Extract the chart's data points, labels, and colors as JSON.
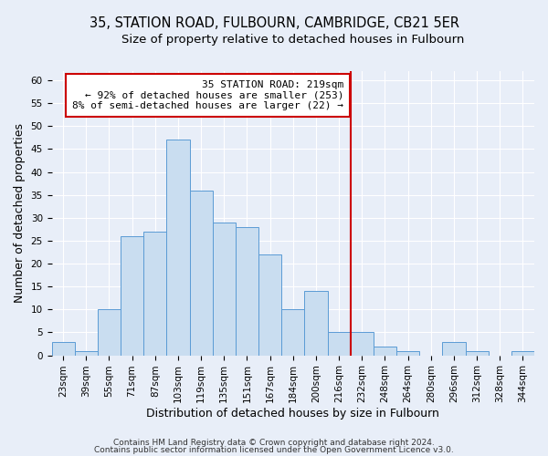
{
  "title1": "35, STATION ROAD, FULBOURN, CAMBRIDGE, CB21 5ER",
  "title2": "Size of property relative to detached houses in Fulbourn",
  "xlabel": "Distribution of detached houses by size in Fulbourn",
  "ylabel": "Number of detached properties",
  "bin_labels": [
    "23sqm",
    "39sqm",
    "55sqm",
    "71sqm",
    "87sqm",
    "103sqm",
    "119sqm",
    "135sqm",
    "151sqm",
    "167sqm",
    "184sqm",
    "200sqm",
    "216sqm",
    "232sqm",
    "248sqm",
    "264sqm",
    "280sqm",
    "296sqm",
    "312sqm",
    "328sqm",
    "344sqm"
  ],
  "bar_heights": [
    3,
    1,
    10,
    26,
    27,
    47,
    36,
    29,
    28,
    22,
    10,
    14,
    5,
    5,
    2,
    1,
    0,
    3,
    1,
    0,
    1
  ],
  "bar_color": "#c9ddf0",
  "bar_edge_color": "#5b9bd5",
  "vline_x_bin": 12,
  "vline_color": "#cc0000",
  "annotation_title": "35 STATION ROAD: 219sqm",
  "annotation_line1": "← 92% of detached houses are smaller (253)",
  "annotation_line2": "8% of semi-detached houses are larger (22) →",
  "annotation_box_edge": "#cc0000",
  "ylim": [
    0,
    62
  ],
  "yticks": [
    0,
    5,
    10,
    15,
    20,
    25,
    30,
    35,
    40,
    45,
    50,
    55,
    60
  ],
  "footnote1": "Contains HM Land Registry data © Crown copyright and database right 2024.",
  "footnote2": "Contains public sector information licensed under the Open Government Licence v3.0.",
  "background_color": "#e8eef8",
  "grid_color": "#ffffff",
  "title_fontsize": 10.5,
  "subtitle_fontsize": 9.5,
  "axis_label_fontsize": 9,
  "tick_fontsize": 7.5,
  "annotation_fontsize": 8,
  "footnote_fontsize": 6.5
}
